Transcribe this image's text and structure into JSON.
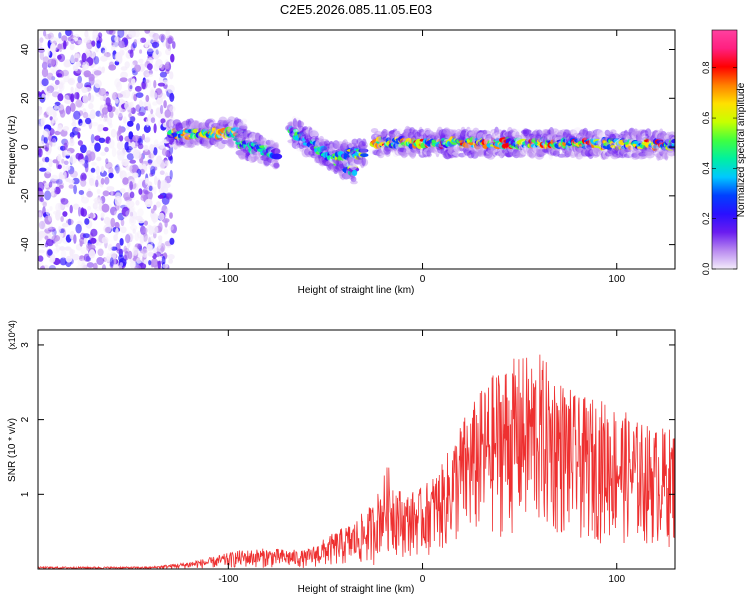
{
  "title": "C2E5.2026.085.11.05.E03",
  "chart_data": [
    {
      "type": "heatmap",
      "panel": "top",
      "xlabel": "Height of straight line (km)",
      "ylabel": "Frequency (Hz)",
      "xlim": [
        -198,
        130
      ],
      "ylim": [
        -50,
        48
      ],
      "xticks": [
        -100,
        0,
        100
      ],
      "yticks": [
        -40,
        -20,
        0,
        20,
        40
      ],
      "colorbar": {
        "label": "Normalized spectral amplitude",
        "range": [
          0,
          0.95
        ],
        "ticks": [
          0.0,
          0.2,
          0.4,
          0.6,
          0.8
        ],
        "colors": [
          "#f4ecfb",
          "#b98af0",
          "#6a1cf0",
          "#2a10ff",
          "#0040ff",
          "#00c8ff",
          "#00f0a0",
          "#40ff40",
          "#c8ff00",
          "#ffe000",
          "#ff8000",
          "#ff0000",
          "#ff2080",
          "#ff40a0"
        ]
      },
      "noise_region": {
        "x_from": -198,
        "x_to": -128,
        "note": "broadband speckle"
      },
      "ridges": [
        {
          "from": [
            -130,
            5
          ],
          "to": [
            -92,
            6
          ],
          "peak": 0.85
        },
        {
          "from": [
            -95,
            2
          ],
          "to": [
            -75,
            -3
          ],
          "peak": 0.6
        },
        {
          "from": [
            -68,
            7
          ],
          "to": [
            -35,
            -10
          ],
          "peak": 0.65
        },
        {
          "from": [
            -45,
            -4
          ],
          "to": [
            -30,
            -2
          ],
          "peak": 0.7
        },
        {
          "from": [
            -25,
            2
          ],
          "to": [
            130,
            1
          ],
          "peak": 0.9
        }
      ]
    },
    {
      "type": "line",
      "panel": "bottom",
      "xlabel": "Height of straight line (km)",
      "ylabel": "SNR (10 * v/v)",
      "y_multiplier": "(x10^4)",
      "xlim": [
        -198,
        130
      ],
      "ylim": [
        0,
        3.2
      ],
      "xticks": [
        -100,
        0,
        100
      ],
      "yticks": [
        1,
        2,
        3
      ],
      "series": [
        {
          "name": "SNR",
          "color": "#ee3030",
          "envelope_x": [
            -198,
            -140,
            -125,
            -110,
            -95,
            -80,
            -60,
            -45,
            -35,
            -25,
            -18,
            -10,
            0,
            10,
            20,
            30,
            40,
            50,
            60,
            70,
            80,
            90,
            100,
            110,
            120,
            130
          ],
          "envelope_y": [
            0.03,
            0.03,
            0.08,
            0.15,
            0.25,
            0.28,
            0.25,
            0.5,
            0.65,
            0.9,
            1.4,
            1.0,
            1.1,
            1.4,
            2.0,
            2.4,
            2.75,
            2.85,
            2.9,
            2.6,
            2.3,
            2.3,
            2.2,
            2.0,
            1.9,
            1.9
          ]
        }
      ]
    }
  ]
}
